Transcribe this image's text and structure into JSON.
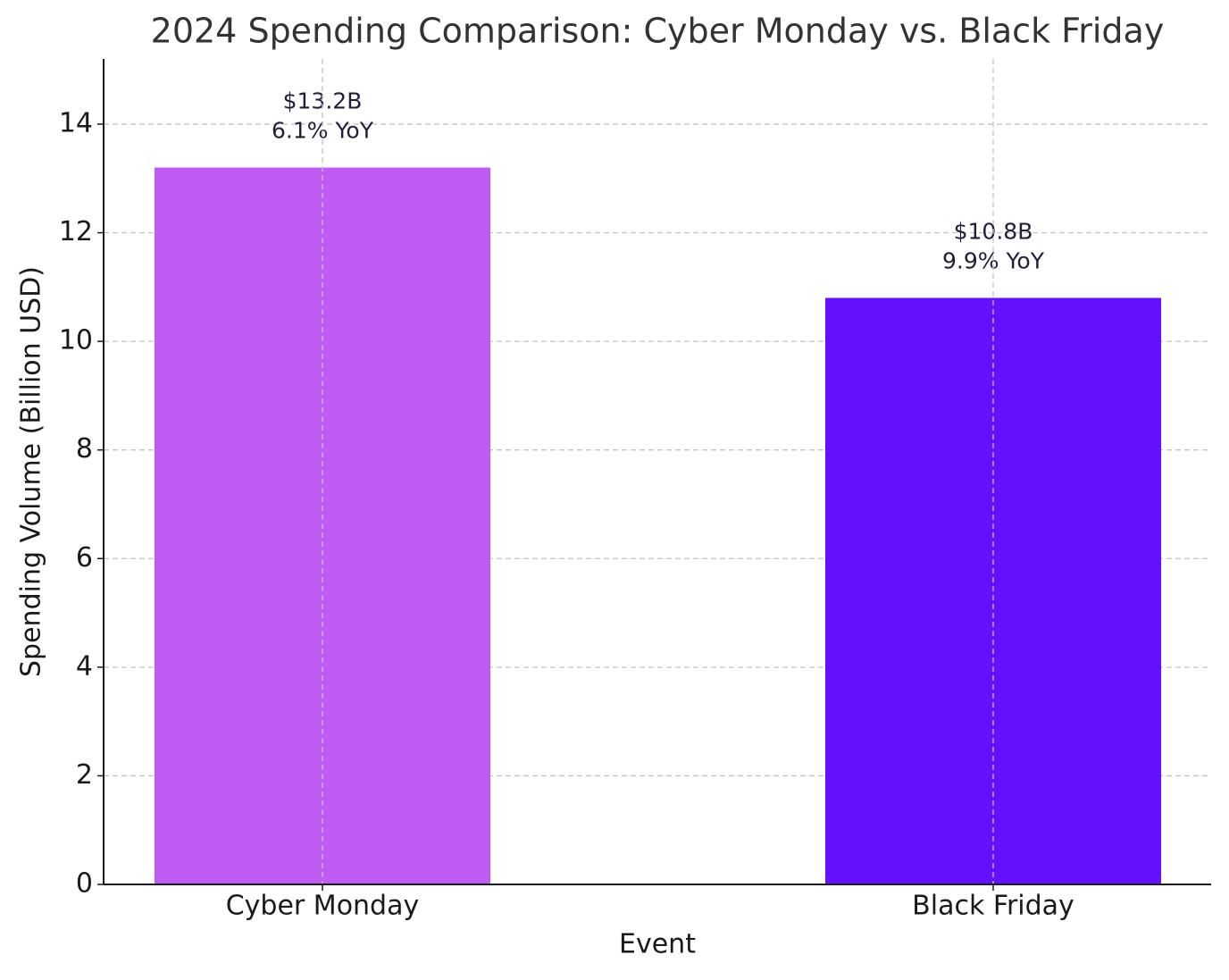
{
  "chart_data": {
    "type": "bar",
    "title": "2024 Spending Comparison: Cyber Monday vs. Black Friday",
    "x_label": "Event",
    "y_label": "Spending Volume (Billion USD)",
    "categories": [
      "Cyber Monday",
      "Black Friday"
    ],
    "values": [
      13.2,
      10.8
    ],
    "value_labels": [
      "$13.2B",
      "$10.8B"
    ],
    "yoy_labels": [
      "6.1% YoY",
      "9.9% YoY"
    ],
    "colors": [
      "#bf5af2",
      "#6410ff"
    ],
    "ylim": [
      0,
      15.2
    ],
    "yticks": [
      0,
      2,
      4,
      6,
      8,
      10,
      12,
      14
    ],
    "grid": true
  }
}
